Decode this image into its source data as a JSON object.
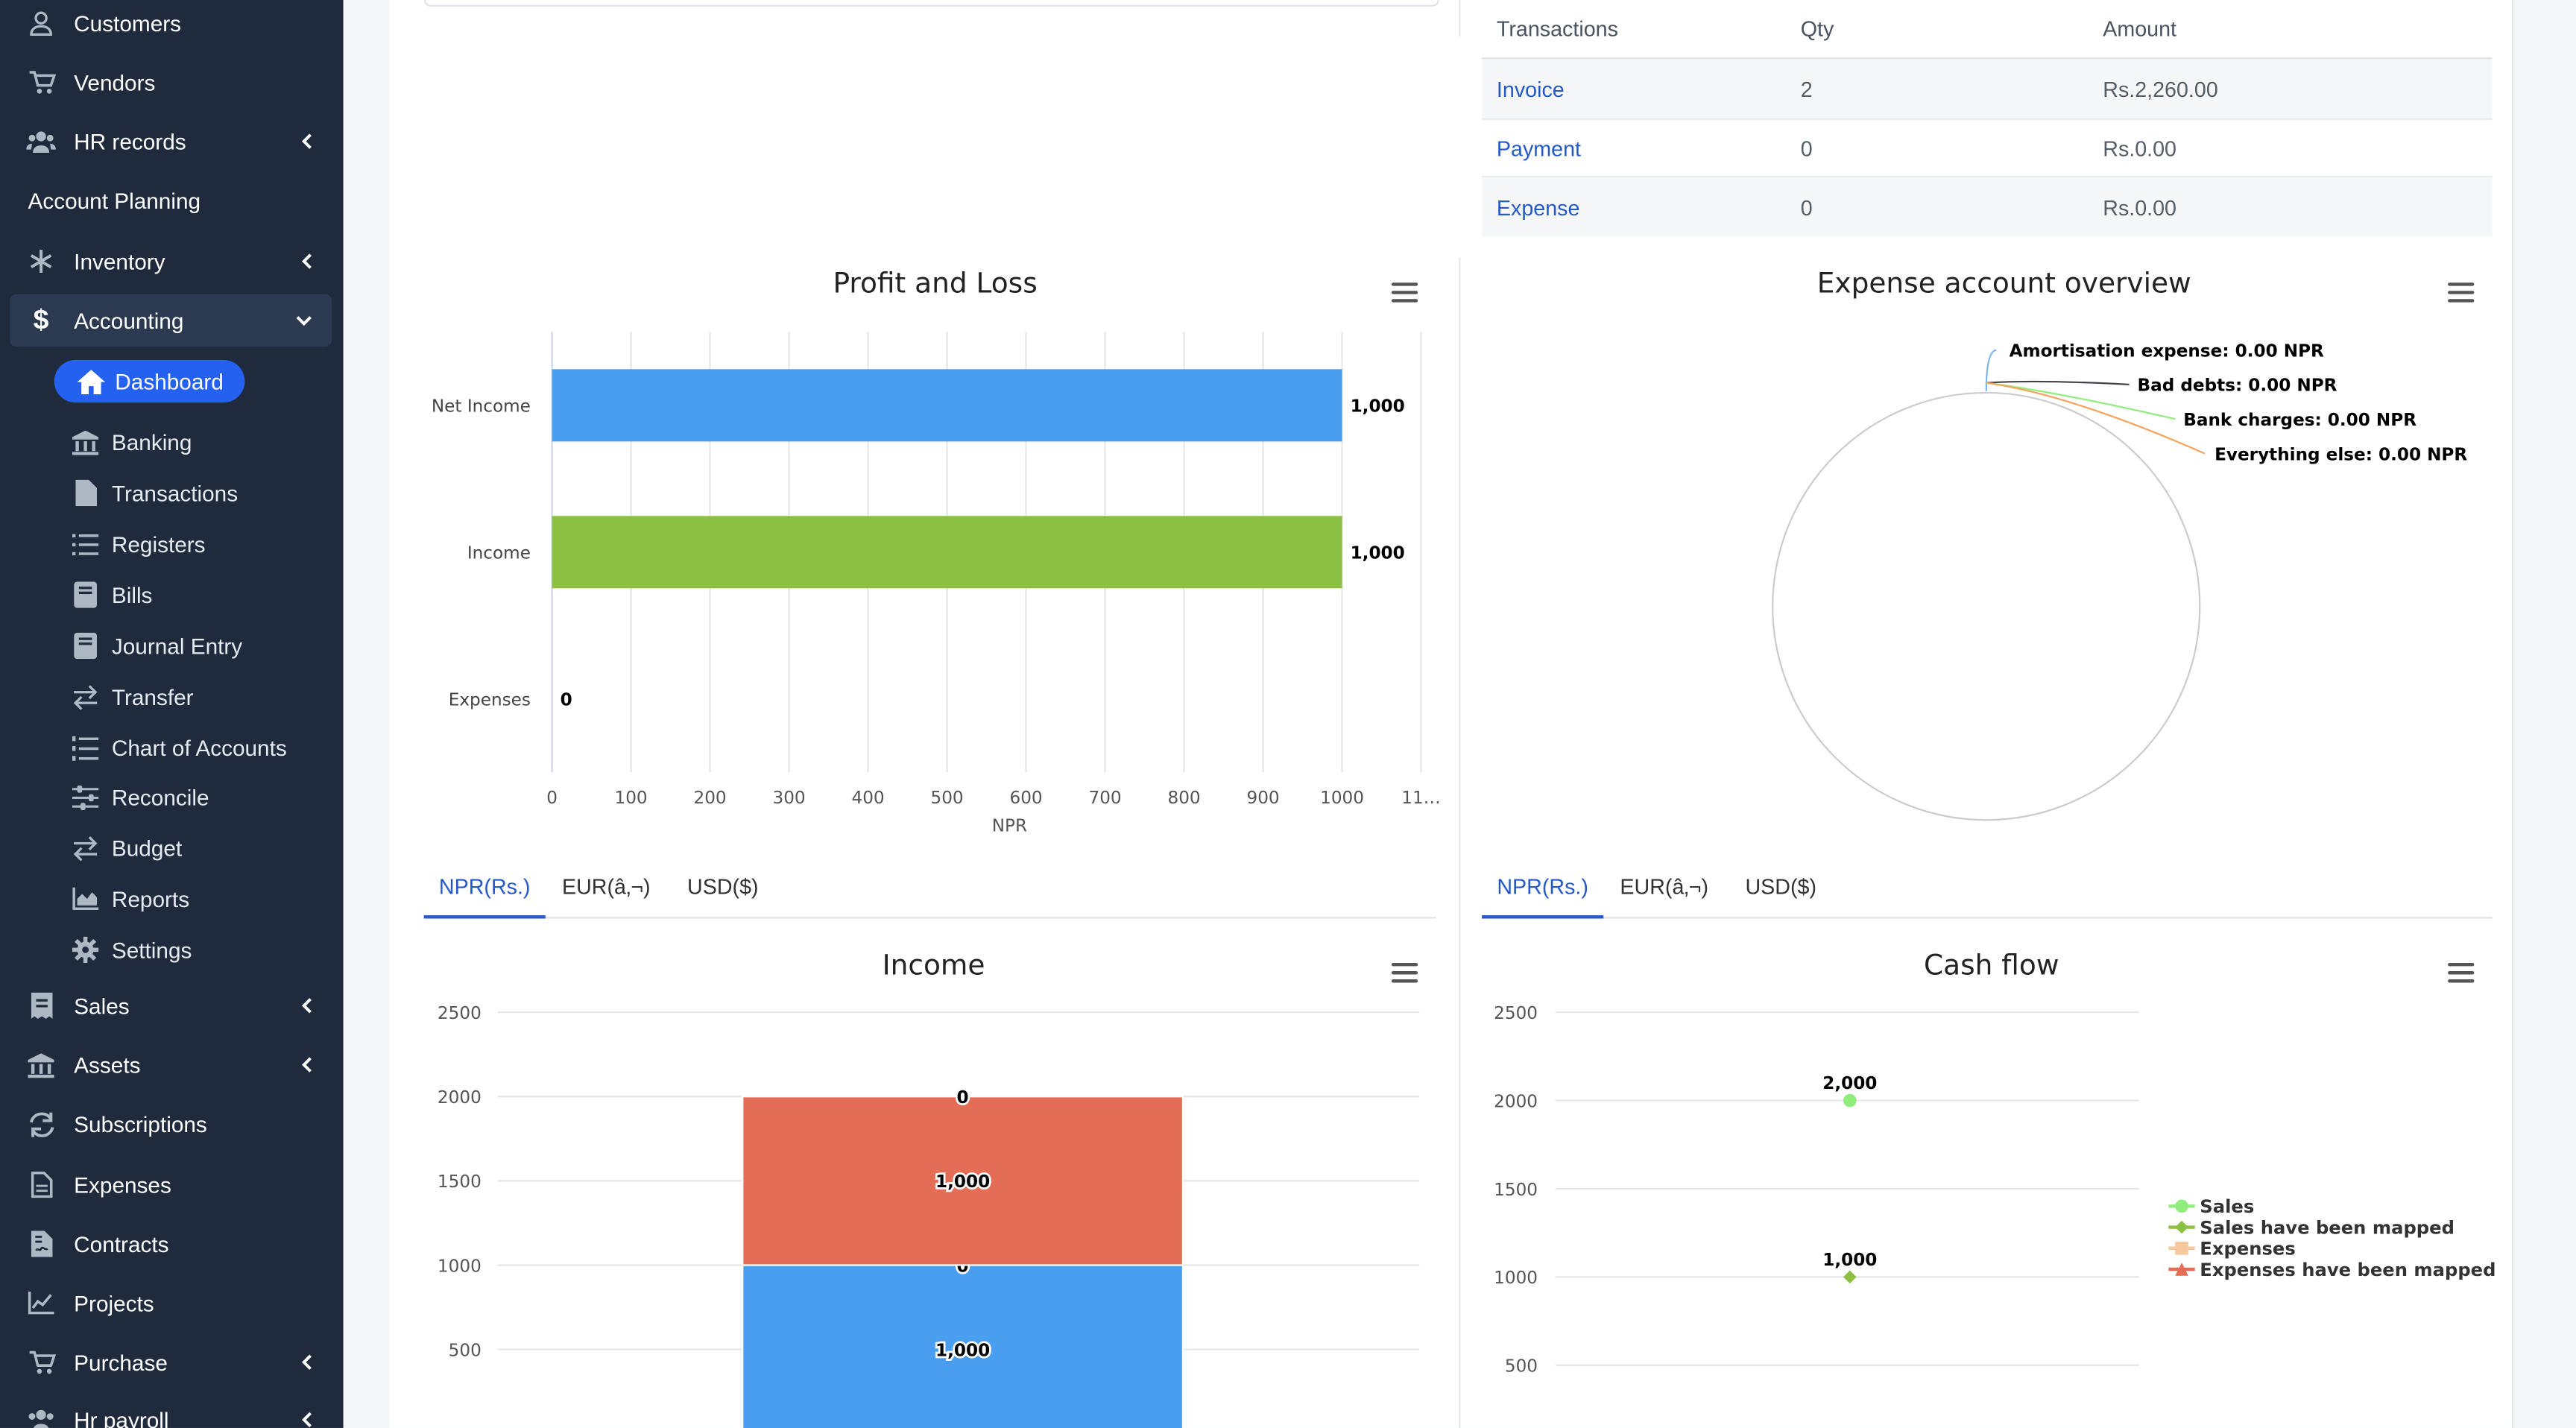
{
  "sidebar": {
    "customers": "Customers",
    "vendors": "Vendors",
    "hr_records": "HR records",
    "account_planning": "Account Planning",
    "inventory": "Inventory",
    "accounting": "Accounting",
    "dashboard": "Dashboard",
    "banking": "Banking",
    "transactions": "Transactions",
    "registers": "Registers",
    "bills": "Bills",
    "journal_entry": "Journal Entry",
    "transfer": "Transfer",
    "chart_of_accounts": "Chart of Accounts",
    "reconcile": "Reconcile",
    "budget": "Budget",
    "reports": "Reports",
    "settings": "Settings",
    "sales": "Sales",
    "assets": "Assets",
    "subscriptions": "Subscriptions",
    "expenses": "Expenses",
    "contracts": "Contracts",
    "projects": "Projects",
    "purchase": "Purchase",
    "hr_payroll": "Hr payroll"
  },
  "table": {
    "headers": [
      "Transactions",
      "Qty",
      "Amount"
    ],
    "rows": [
      {
        "type": "Invoice",
        "qty": "2",
        "amount": "Rs.2,260.00"
      },
      {
        "type": "Payment",
        "qty": "0",
        "amount": "Rs.0.00"
      },
      {
        "type": "Expense",
        "qty": "0",
        "amount": "Rs.0.00"
      }
    ]
  },
  "tabs_left": [
    "NPR(Rs.)",
    "EUR(â‚¬)",
    "USD($)"
  ],
  "tabs_right": [
    "NPR(Rs.)",
    "EUR(â‚¬)",
    "USD($)"
  ],
  "colors": {
    "sidebar_bg": "#1f2b3d",
    "accent": "#2461f0",
    "bar_blue": "#4a9ef0",
    "bar_green": "#8cc043",
    "bar_red": "#e46d55"
  },
  "chart_data": [
    {
      "type": "bar",
      "title": "Profit and Loss",
      "orientation": "horizontal",
      "categories": [
        "Net Income",
        "Income",
        "Expenses"
      ],
      "values": [
        1000,
        1000,
        0
      ],
      "value_labels": [
        "1,000",
        "1,000",
        "0"
      ],
      "colors": [
        "#4a9ef0",
        "#8cc043",
        "#4a9ef0"
      ],
      "xlabel": "NPR",
      "xlim": [
        0,
        1100
      ],
      "x_ticks": [
        "0",
        "100",
        "200",
        "300",
        "400",
        "500",
        "600",
        "700",
        "800",
        "900",
        "1000",
        "11…"
      ],
      "grid": true
    },
    {
      "type": "pie",
      "title": "Expense account overview",
      "slices": [
        {
          "label": "Amortisation expense: 0.00 NPR",
          "value": 0,
          "color": "#7cb5ec"
        },
        {
          "label": "Bad debts: 0.00 NPR",
          "value": 0,
          "color": "#434348"
        },
        {
          "label": "Bank charges: 0.00 NPR",
          "value": 0,
          "color": "#90ed7d"
        },
        {
          "label": "Everything else: 0.00 NPR",
          "value": 0,
          "color": "#f7a35c"
        }
      ]
    },
    {
      "type": "bar",
      "title": "Income",
      "stacked": true,
      "ylim": [
        0,
        2500
      ],
      "y_ticks": [
        "2500",
        "2000",
        "1500",
        "1000",
        "500"
      ],
      "segments": [
        {
          "value": 1000,
          "label": "1,000",
          "color": "#4a9ef0"
        },
        {
          "value": 0,
          "label": "0",
          "color": "#4a9ef0"
        },
        {
          "value": 1000,
          "label": "1,000",
          "color": "#e46d55"
        },
        {
          "value": 0,
          "label": "0",
          "color": "#e46d55"
        }
      ],
      "grid": true
    },
    {
      "type": "line",
      "title": "Cash flow",
      "ylim": [
        0,
        2500
      ],
      "y_ticks": [
        "2500",
        "2000",
        "1500",
        "1000",
        "500"
      ],
      "points": [
        {
          "value": 2000,
          "label": "2,000",
          "color": "#90ed7d"
        },
        {
          "value": 1000,
          "label": "1,000",
          "color": "#8cc043"
        }
      ],
      "legend": {
        "position": "right",
        "items": [
          {
            "label": "Sales",
            "color": "#90ed7d",
            "marker": "circle"
          },
          {
            "label": "Sales have been mapped",
            "color": "#8cc043",
            "marker": "diamond"
          },
          {
            "label": "Expenses",
            "color": "#f7c89b",
            "marker": "square"
          },
          {
            "label": "Expenses have been mapped",
            "color": "#e46d55",
            "marker": "triangle"
          }
        ]
      },
      "grid": true
    }
  ]
}
